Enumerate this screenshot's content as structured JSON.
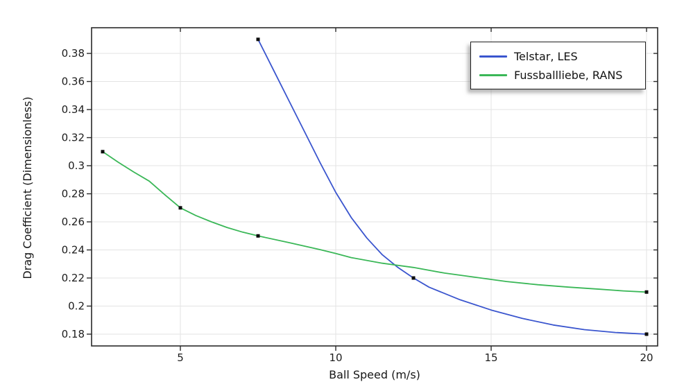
{
  "chart_data": {
    "type": "line",
    "title": "",
    "xlabel": "Ball Speed (m/s)",
    "ylabel": "Drag Coefficient (Dimensionless)",
    "xlim": [
      2.143,
      20.357
    ],
    "ylim": [
      0.1716,
      0.3983
    ],
    "xticks": [
      5,
      10,
      15,
      20
    ],
    "xtick_labels": [
      "5",
      "10",
      "15",
      "20"
    ],
    "yticks": [
      0.18,
      0.2,
      0.22,
      0.24,
      0.26,
      0.28,
      0.3,
      0.32,
      0.34,
      0.36,
      0.38
    ],
    "ytick_labels": [
      "0.18",
      "0.2",
      "0.22",
      "0.24",
      "0.26",
      "0.28",
      "0.3",
      "0.32",
      "0.34",
      "0.36",
      "0.38"
    ],
    "grid": true,
    "grid_color": "#e3e3e3",
    "frame_color": "#2a2a2a",
    "legend_position": "top-right",
    "marker_color": "#0d0d0d",
    "series": [
      {
        "name": "Telstar, LES",
        "color": "#3a55ce",
        "marker": "square",
        "data_points": [
          [
            7.5,
            0.39
          ],
          [
            12.5,
            0.22
          ],
          [
            20,
            0.18
          ]
        ],
        "curve": [
          [
            7.5,
            0.39
          ],
          [
            8,
            0.368
          ],
          [
            8.5,
            0.346
          ],
          [
            9,
            0.324
          ],
          [
            9.5,
            0.302
          ],
          [
            10,
            0.281
          ],
          [
            10.5,
            0.263
          ],
          [
            11,
            0.2485
          ],
          [
            11.5,
            0.2365
          ],
          [
            12,
            0.2275
          ],
          [
            12.5,
            0.22
          ],
          [
            13,
            0.2135
          ],
          [
            14,
            0.2045
          ],
          [
            15,
            0.1972
          ],
          [
            16,
            0.1912
          ],
          [
            17,
            0.1865
          ],
          [
            18,
            0.1832
          ],
          [
            19,
            0.1812
          ],
          [
            20,
            0.18
          ]
        ]
      },
      {
        "name": "Fussballliebe, RANS",
        "color": "#3ab757",
        "marker": "square",
        "data_points": [
          [
            2.5,
            0.31
          ],
          [
            5,
            0.27
          ],
          [
            7.5,
            0.25
          ],
          [
            20,
            0.21
          ]
        ],
        "curve": [
          [
            2.5,
            0.31
          ],
          [
            3,
            0.3025
          ],
          [
            3.5,
            0.2955
          ],
          [
            4,
            0.289
          ],
          [
            4.5,
            0.2793
          ],
          [
            5,
            0.27
          ],
          [
            5.5,
            0.2645
          ],
          [
            6,
            0.26
          ],
          [
            6.5,
            0.256
          ],
          [
            7,
            0.2527
          ],
          [
            7.5,
            0.25
          ],
          [
            8.5,
            0.2452
          ],
          [
            9.5,
            0.2402
          ],
          [
            10,
            0.2375
          ],
          [
            10.5,
            0.2345
          ],
          [
            11.5,
            0.2305
          ],
          [
            12.5,
            0.2275
          ],
          [
            13.5,
            0.2235
          ],
          [
            14.5,
            0.2205
          ],
          [
            15.5,
            0.2175
          ],
          [
            16.5,
            0.2152
          ],
          [
            17.5,
            0.2135
          ],
          [
            18.5,
            0.212
          ],
          [
            19.25,
            0.2108
          ],
          [
            20,
            0.21
          ]
        ]
      }
    ]
  }
}
